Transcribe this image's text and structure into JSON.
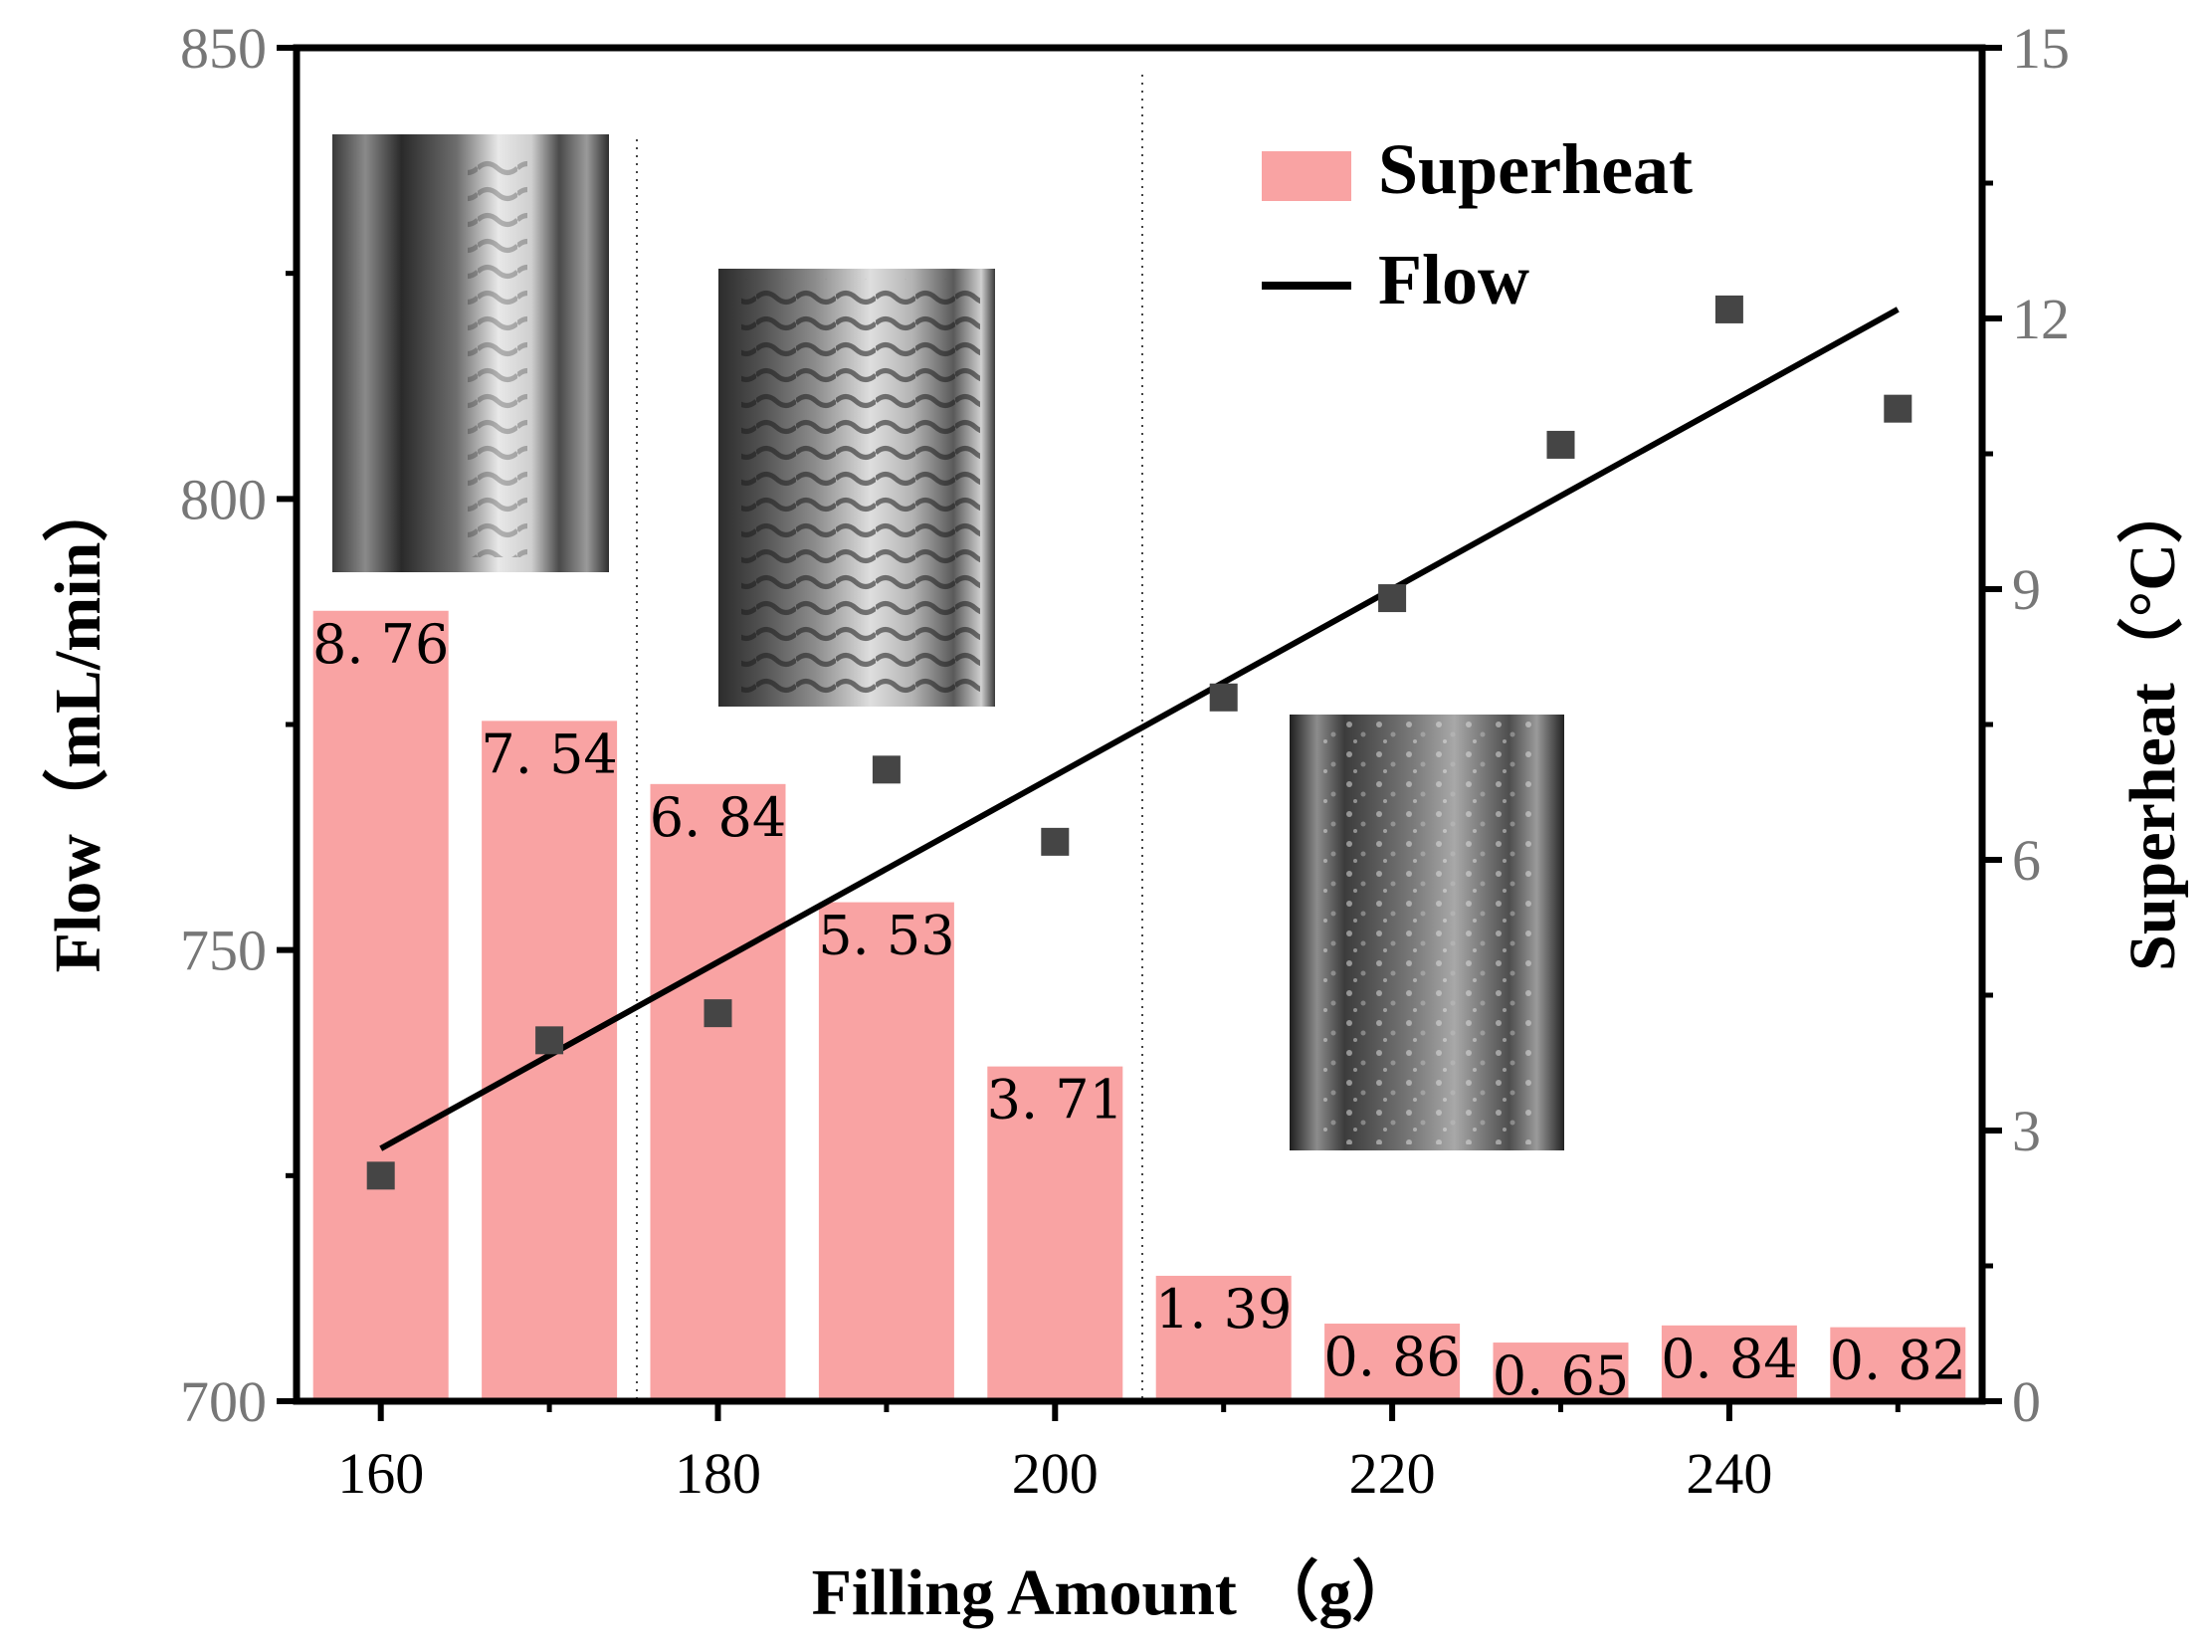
{
  "chart_data": {
    "type": "bar+line+scatter",
    "x_label": "Filling Amount （g）",
    "y_left_label": "Flow（mL/min）",
    "y_right_label": "Superheat（°C）",
    "x_ticks": [
      "160",
      "180",
      "200",
      "220",
      "240"
    ],
    "x_tick_values": [
      160,
      180,
      200,
      220,
      240
    ],
    "y_left_ticks": [
      "700",
      "750",
      "800",
      "850"
    ],
    "y_left_tick_values": [
      700,
      750,
      800,
      850
    ],
    "y_right_ticks": [
      "0",
      "3",
      "6",
      "9",
      "12",
      "15"
    ],
    "y_right_tick_values": [
      0,
      3,
      6,
      9,
      12,
      15
    ],
    "x_range": [
      155,
      255
    ],
    "y_left_range": [
      700,
      850
    ],
    "y_right_range": [
      0,
      15
    ],
    "superheat_series": {
      "name": "Superheat",
      "x": [
        160,
        170,
        180,
        190,
        200,
        210,
        220,
        230,
        240,
        250
      ],
      "values": [
        8.76,
        7.54,
        6.84,
        5.53,
        3.71,
        1.39,
        0.86,
        0.65,
        0.84,
        0.82
      ],
      "labels": [
        "8. 76",
        "7. 54",
        "6. 84",
        "5. 53",
        "3. 71",
        "1. 39",
        "0. 86",
        "0. 65",
        "0. 84",
        "0. 82"
      ],
      "color": "#f9a3a3"
    },
    "flow_points": {
      "x": [
        160,
        170,
        180,
        190,
        200,
        210,
        220,
        230,
        240,
        250
      ],
      "values": [
        725,
        740,
        743,
        770,
        762,
        778,
        789,
        806,
        821,
        810
      ],
      "color": "#454545"
    },
    "flow_fit": {
      "name": "Flow",
      "x": [
        160,
        250
      ],
      "values": [
        728,
        821
      ],
      "color": "#000000"
    },
    "legend": {
      "position": "top-right",
      "items": [
        {
          "label": "Superheat",
          "kind": "bar"
        },
        {
          "label": "Flow",
          "kind": "line"
        }
      ]
    },
    "insets": [
      {
        "name": "flow-pattern-photo-160-170",
        "kind": "annular flow photo"
      },
      {
        "name": "flow-pattern-photo-180-190",
        "kind": "wavy annular flow photo"
      },
      {
        "name": "flow-pattern-photo-220-230",
        "kind": "churn flow photo"
      }
    ]
  }
}
